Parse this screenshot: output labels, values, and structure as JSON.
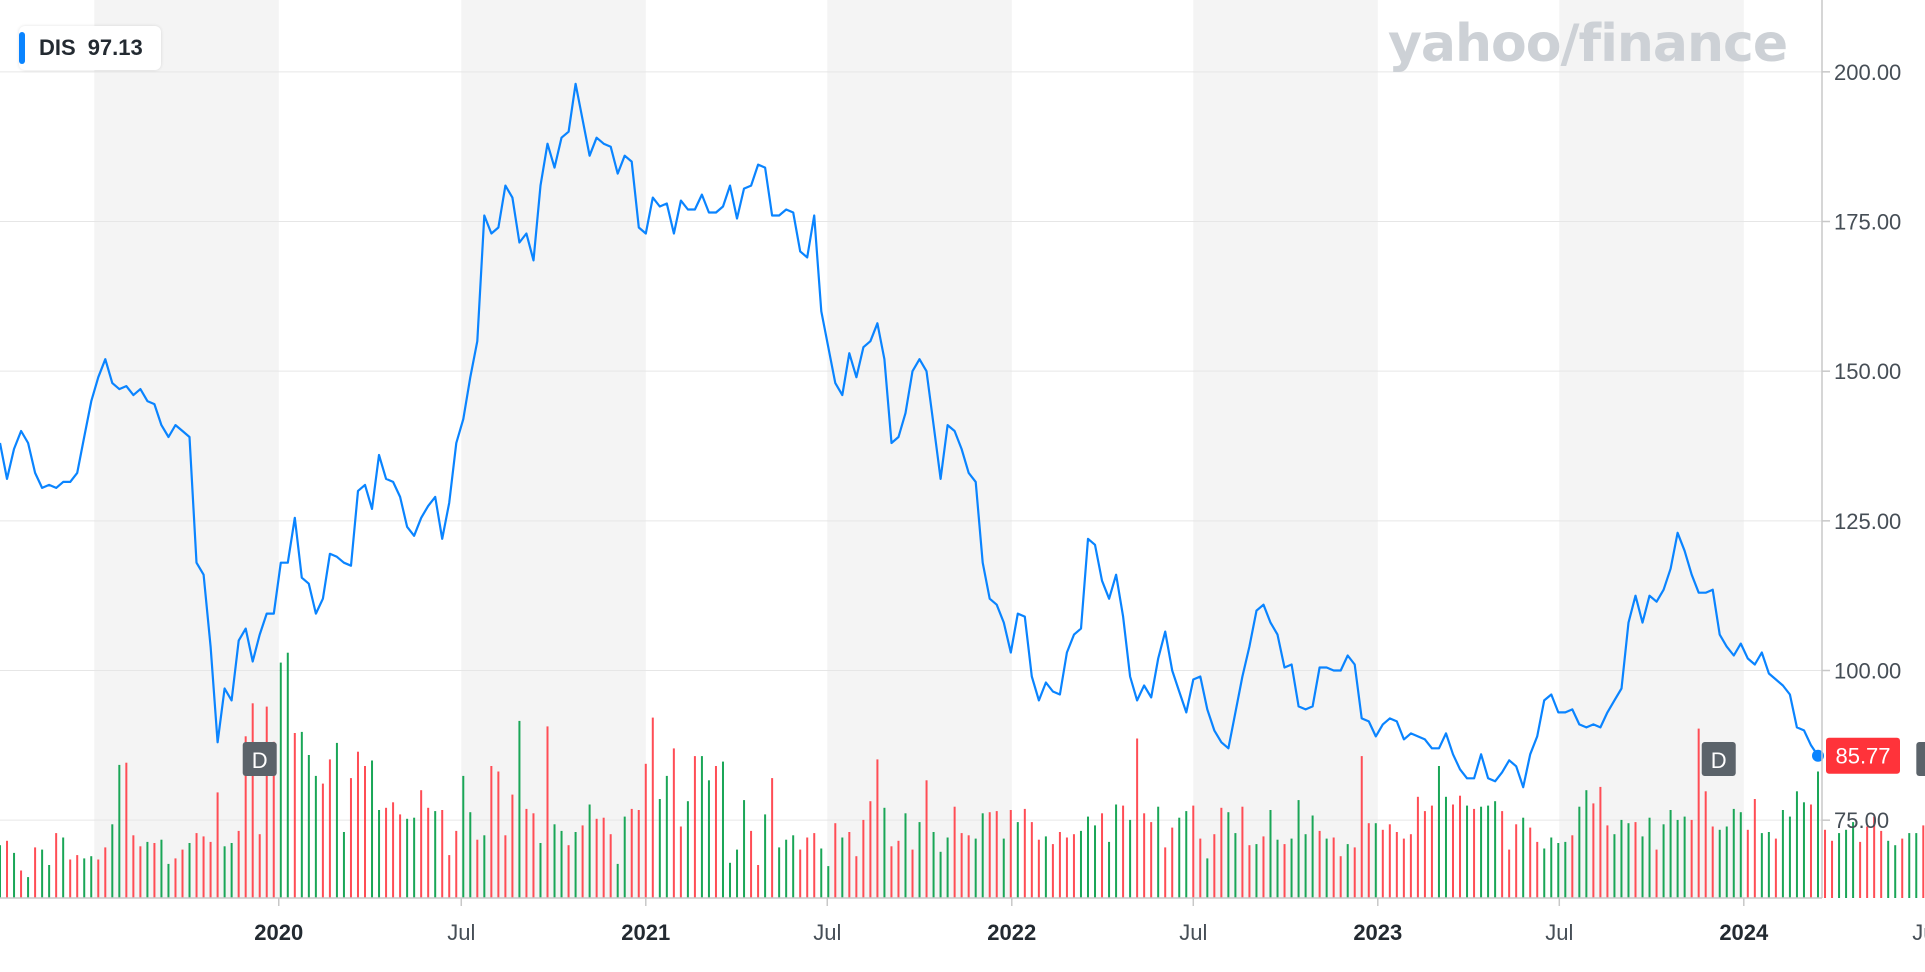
{
  "legend": {
    "ticker": "DIS",
    "value": "97.13"
  },
  "watermark": "yahoo/finance",
  "last_price_badge": "85.77",
  "dividend_marker": "D",
  "colors": {
    "line": "#0a84ff",
    "up_volume": "#1aa657",
    "down_volume": "#ff4d55",
    "band": "#f4f4f4",
    "grid": "#e6e6e6",
    "badge": "#ff333a",
    "dividend_badge": "#5b636a"
  },
  "chart_data": {
    "type": "line",
    "series": [
      {
        "name": "DIS",
        "x_start": "2019-03-29",
        "interval": "week",
        "values": [
          138,
          132,
          137,
          140,
          138,
          133,
          130.5,
          131,
          130.5,
          131.5,
          131.5,
          133,
          139,
          145,
          149,
          152,
          148,
          147,
          147.5,
          146,
          147,
          145,
          144.5,
          141,
          139,
          141,
          140,
          139,
          118,
          116,
          104,
          88,
          97,
          95,
          105,
          107,
          101.5,
          106,
          109.5,
          109.5,
          118,
          118,
          125.5,
          115.5,
          114.5,
          109.5,
          112,
          119.5,
          119,
          118,
          117.5,
          130,
          131,
          127,
          136,
          132,
          131.5,
          129,
          124,
          122.5,
          125.5,
          127.5,
          129,
          122,
          128,
          138,
          142,
          149,
          155,
          176,
          173,
          174,
          181,
          179,
          171.5,
          173,
          168.5,
          181,
          188,
          184,
          189,
          190,
          198,
          192,
          186,
          189,
          188,
          187.5,
          183,
          186,
          185,
          174,
          173,
          179,
          177.5,
          178,
          173,
          178.5,
          177,
          177,
          179.5,
          176.5,
          176.5,
          177.5,
          181,
          175.5,
          180.5,
          181,
          184.5,
          184,
          176,
          176,
          177,
          176.5,
          170,
          169,
          176,
          160,
          154,
          148,
          146,
          153,
          149,
          154,
          155,
          158,
          152,
          138,
          139,
          143,
          150,
          152,
          150,
          141,
          132,
          141,
          140,
          137,
          133,
          131.5,
          118,
          112,
          111,
          108,
          103,
          109.5,
          109,
          99,
          95,
          98,
          96.5,
          96,
          103,
          106,
          107,
          122,
          121,
          115,
          112,
          116,
          109,
          99,
          95,
          97.5,
          95.5,
          102,
          106.5,
          100,
          96.5,
          93,
          98.5,
          99,
          93.5,
          90,
          88,
          87,
          93,
          99,
          104,
          110,
          111,
          108,
          106,
          100.5,
          101,
          94,
          93.5,
          94,
          100.5,
          100.5,
          100,
          100,
          102.5,
          101,
          92,
          91.5,
          89,
          91,
          92,
          91.5,
          88.5,
          89.5,
          89,
          88.5,
          87,
          87,
          89.5,
          86,
          83.5,
          82,
          82,
          86,
          82,
          81.5,
          83,
          85,
          84,
          80.5,
          86,
          89,
          95,
          96,
          93,
          93,
          93.5,
          91,
          90.5,
          91,
          90.5,
          93,
          95,
          97,
          108,
          112.5,
          108,
          112.5,
          111.5,
          113.5,
          117,
          123,
          120,
          116,
          113,
          113,
          113.5,
          106,
          104,
          102.5,
          104.5,
          102,
          101,
          103,
          99.5,
          98.5,
          97.5,
          96,
          90.5,
          90,
          87.5,
          85.77
        ]
      }
    ],
    "volume": {
      "values": [
        0.48,
        0.52,
        0.41,
        0.25,
        0.19,
        0.46,
        0.44,
        0.3,
        0.59,
        0.55,
        0.35,
        0.39,
        0.36,
        0.38,
        0.35,
        0.46,
        0.67,
        1.21,
        1.23,
        0.57,
        0.47,
        0.51,
        0.5,
        0.53,
        0.31,
        0.36,
        0.44,
        0.5,
        0.59,
        0.56,
        0.51,
        0.96,
        0.47,
        0.5,
        0.61,
        1.47,
        1.77,
        0.58,
        1.74,
        1.42,
        2.14,
        2.23,
        1.5,
        1.51,
        1.3,
        1.11,
        1.04,
        1.26,
        1.41,
        0.6,
        1.09,
        1.33,
        1.2,
        1.25,
        0.8,
        0.82,
        0.87,
        0.76,
        0.72,
        0.73,
        0.98,
        0.82,
        0.79,
        0.8,
        0.39,
        0.61,
        1.11,
        0.78,
        0.53,
        0.57,
        1.2,
        1.15,
        0.57,
        0.94,
        1.61,
        0.81,
        0.77,
        0.5,
        1.56,
        0.67,
        0.61,
        0.48,
        0.6,
        0.66,
        0.85,
        0.72,
        0.73,
        0.58,
        0.31,
        0.74,
        0.81,
        0.8,
        1.22,
        1.64,
        0.9,
        1.11,
        1.36,
        0.65,
        0.88,
        1.29,
        1.29,
        1.07,
        1.2,
        1.24,
        0.32,
        0.44,
        0.89,
        0.61,
        0.3,
        0.76,
        1.09,
        0.46,
        0.53,
        0.57,
        0.44,
        0.55,
        0.59,
        0.45,
        0.29,
        0.68,
        0.55,
        0.6,
        0.38,
        0.71,
        0.88,
        1.26,
        0.82,
        0.47,
        0.52,
        0.77,
        0.44,
        0.69,
        1.07,
        0.6,
        0.42,
        0.55,
        0.83,
        0.59,
        0.57,
        0.54,
        0.77,
        0.78,
        0.79,
        0.54,
        0.8,
        0.69,
        0.81,
        0.69,
        0.53,
        0.56,
        0.49,
        0.6,
        0.55,
        0.58,
        0.61,
        0.74,
        0.66,
        0.77,
        0.51,
        0.85,
        0.84,
        0.71,
        1.45,
        0.77,
        0.69,
        0.83,
        0.46,
        0.64,
        0.73,
        0.79,
        0.84,
        0.54,
        0.36,
        0.58,
        0.82,
        0.78,
        0.59,
        0.83,
        0.48,
        0.49,
        0.56,
        0.8,
        0.53,
        0.49,
        0.54,
        0.89,
        0.58,
        0.75,
        0.61,
        0.54,
        0.55,
        0.38,
        0.49,
        0.46,
        1.29,
        0.68,
        0.68,
        0.62,
        0.67,
        0.6,
        0.54,
        0.58,
        0.92,
        0.79,
        0.84,
        1.2,
        0.92,
        0.85,
        0.93,
        0.84,
        0.81,
        0.83,
        0.84,
        0.88,
        0.79,
        0.44,
        0.67,
        0.73,
        0.64,
        0.51,
        0.45,
        0.55,
        0.5,
        0.51,
        0.57,
        0.83,
        0.98,
        0.86,
        1.01,
        0.66,
        0.58,
        0.71,
        0.68,
        0.69,
        0.56,
        0.73,
        0.44,
        0.67,
        0.8,
        0.71,
        0.74,
        0.71,
        1.54,
        0.97,
        0.65,
        0.62,
        0.65,
        0.81,
        0.78,
        0.62,
        0.9,
        0.59,
        0.6,
        0.54,
        0.8,
        0.74,
        0.97,
        0.87,
        0.85,
        1.15,
        0.62,
        0.52,
        0.59,
        0.62,
        0.69,
        0.51,
        0.65,
        0.74,
        0.61,
        0.52,
        0.48,
        0.54,
        0.59,
        0.59,
        0.66,
        0.67,
        0.7,
        0.99
      ],
      "up": [
        true,
        false,
        true,
        false,
        true,
        false,
        true,
        true,
        false,
        true,
        false,
        false,
        true,
        true,
        false,
        false,
        true,
        true,
        false,
        false,
        false,
        true,
        false,
        true,
        true,
        false,
        false,
        true,
        false,
        false,
        false,
        false,
        true,
        true,
        false,
        false,
        false,
        false,
        false,
        false,
        true,
        true,
        false,
        true,
        true,
        true,
        false,
        false,
        true,
        true,
        false,
        false,
        false,
        true,
        true,
        false,
        false,
        false,
        true,
        true,
        false,
        false,
        true,
        false,
        false,
        false,
        true,
        true,
        false,
        true,
        false,
        false,
        false,
        false,
        true,
        false,
        false,
        true,
        false,
        true,
        true,
        false,
        true,
        false,
        true,
        false,
        false,
        false,
        true,
        true,
        false,
        false,
        false,
        false,
        true,
        true,
        false,
        false,
        true,
        false,
        true,
        true,
        false,
        true,
        true,
        true,
        true,
        false,
        false,
        true,
        false,
        true,
        true,
        true,
        false,
        false,
        false,
        true,
        true,
        false,
        true,
        false,
        false,
        false,
        false,
        false,
        true,
        false,
        false,
        true,
        false,
        true,
        false,
        true,
        true,
        true,
        false,
        false,
        false,
        true,
        true,
        false,
        false,
        true,
        false,
        true,
        false,
        false,
        false,
        true,
        false,
        false,
        false,
        false,
        true,
        true,
        true,
        false,
        true,
        true,
        false,
        true,
        false,
        false,
        false,
        true,
        false,
        false,
        true,
        true,
        false,
        false,
        true,
        false,
        false,
        true,
        true,
        false,
        false,
        true,
        false,
        true,
        true,
        false,
        true,
        true,
        true,
        true,
        false,
        true,
        false,
        false,
        true,
        false,
        false,
        false,
        true,
        false,
        false,
        false,
        false,
        false,
        false,
        false,
        false,
        true,
        true,
        false,
        false,
        true,
        false,
        true,
        true,
        true,
        false,
        false,
        false,
        true,
        false,
        false,
        true,
        true,
        true,
        true,
        false,
        true,
        true,
        false,
        false,
        false,
        true,
        true,
        true,
        false,
        true,
        true,
        false,
        true,
        true,
        true,
        true,
        false,
        false,
        false,
        false,
        true,
        true,
        true,
        true,
        false,
        false,
        true,
        true,
        false,
        true,
        true,
        true,
        true,
        false,
        true,
        false,
        false,
        true,
        true,
        true,
        false,
        false,
        false,
        false,
        true,
        true,
        false,
        true,
        true,
        false,
        false,
        false,
        false
      ]
    },
    "ylim": [
      62,
      212
    ],
    "y_ticks": [
      "75.00",
      "100.00",
      "125.00",
      "150.00",
      "175.00",
      "200.00"
    ],
    "y_tick_values": [
      75,
      100,
      125,
      150,
      175,
      200
    ],
    "x_ticks": [
      {
        "label": "2020",
        "date": "2020-01-01",
        "bold": true
      },
      {
        "label": "Jul",
        "date": "2020-07-01",
        "bold": false
      },
      {
        "label": "2021",
        "date": "2021-01-01",
        "bold": true
      },
      {
        "label": "Jul",
        "date": "2021-07-01",
        "bold": false
      },
      {
        "label": "2022",
        "date": "2022-01-01",
        "bold": true
      },
      {
        "label": "Jul",
        "date": "2022-07-01",
        "bold": false
      },
      {
        "label": "2023",
        "date": "2023-01-01",
        "bold": true
      },
      {
        "label": "Jul",
        "date": "2023-07-01",
        "bold": false
      },
      {
        "label": "2024",
        "date": "2024-01-01",
        "bold": true
      },
      {
        "label": "Jul",
        "date": "2024-07-01",
        "bold": false
      }
    ],
    "dividend_dates": [
      "2019-12-13",
      "2023-12-07",
      "2024-07-08"
    ],
    "last_value": 85.77,
    "grid": true
  }
}
